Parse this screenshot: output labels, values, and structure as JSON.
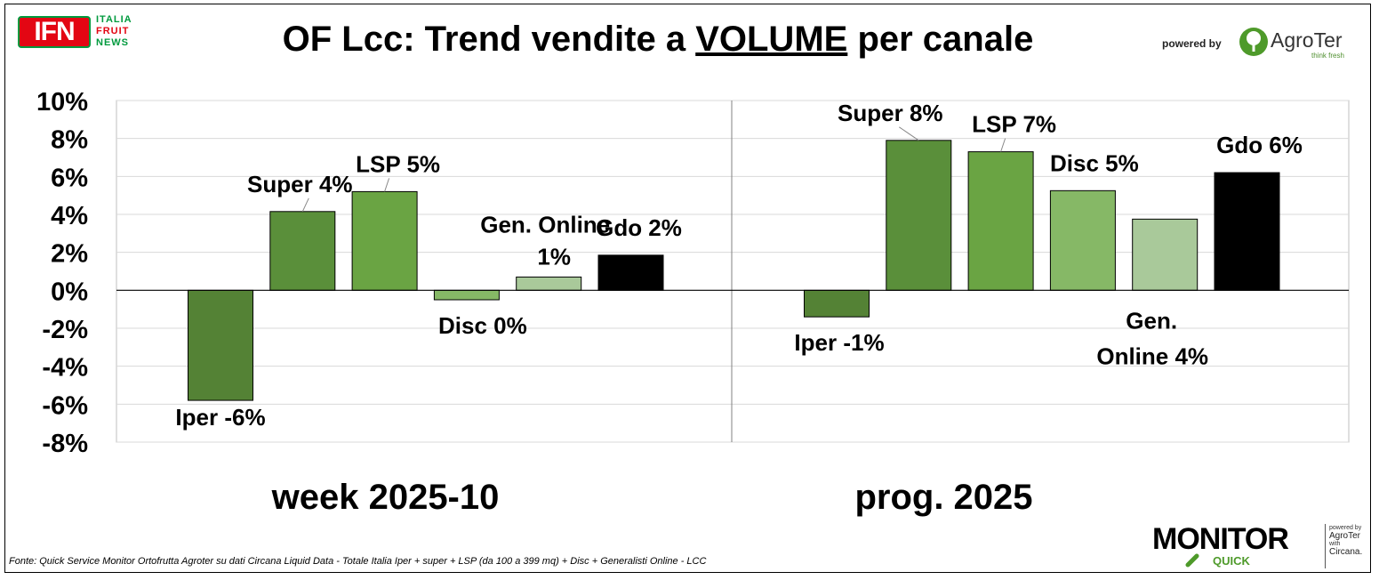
{
  "header": {
    "title_part1": "OF Lcc: Trend vendite a ",
    "title_underlined": "VOLUME",
    "title_part2": " per canale",
    "ifn_logo": {
      "mark": "IFN",
      "line1": "ITALIA",
      "line2": "FRUIT",
      "line3": "NEWS"
    },
    "powered_by": "powered by",
    "agroter_logo": {
      "name": "AgroTer",
      "tagline": "think fresh"
    }
  },
  "footer": {
    "source": "Fonte: Quick Service Monitor Ortofrutta Agroter su dati Circana Liquid Data - Totale Italia Iper + super + LSP (da 100 a 399 mq) + Disc + Generalisti Online - LCC",
    "monitor_logo": {
      "word": "MONITOR",
      "sub": "QUICK"
    },
    "mini_credit": {
      "line1": "powered by",
      "line2": "AgroTer",
      "line3": "with",
      "line4": "Circana."
    }
  },
  "colors": {
    "iper": "#548235",
    "super": "#5a8f3a",
    "lsp": "#6aa443",
    "disc": "#86b866",
    "gen_online": "#a9c99a",
    "gdo": "#000000",
    "grid": "#d9d9d9",
    "axis": "#000000"
  },
  "chart_data": {
    "type": "bar",
    "y_tick_labels": [
      "10%",
      "8%",
      "6%",
      "4%",
      "2%",
      "0%",
      "-2%",
      "-4%",
      "-6%",
      "-8%"
    ],
    "ylim": [
      -8,
      10
    ],
    "grid": true,
    "groups": [
      {
        "label": "week 2025-10",
        "bars": [
          {
            "category": "Iper",
            "value": -5.8,
            "label": "Iper -6%",
            "color_key": "iper"
          },
          {
            "category": "Super",
            "value": 4.15,
            "label": "Super 4%",
            "color_key": "super"
          },
          {
            "category": "LSP",
            "value": 5.2,
            "label": "LSP 5%",
            "color_key": "lsp"
          },
          {
            "category": "Disc",
            "value": -0.5,
            "label": "Disc 0%",
            "color_key": "disc"
          },
          {
            "category": "Gen. Online",
            "value": 0.7,
            "label": "Gen. Online",
            "label2": "1%",
            "color_key": "gen_online"
          },
          {
            "category": "Gdo",
            "value": 1.85,
            "label": "Gdo 2%",
            "color_key": "gdo"
          }
        ]
      },
      {
        "label": "prog. 2025",
        "bars": [
          {
            "category": "Iper",
            "value": -1.4,
            "label": "Iper -1%",
            "color_key": "iper"
          },
          {
            "category": "Super",
            "value": 7.9,
            "label": "Super 8%",
            "color_key": "super"
          },
          {
            "category": "LSP",
            "value": 7.3,
            "label": "LSP 7%",
            "color_key": "lsp"
          },
          {
            "category": "Disc",
            "value": 5.25,
            "label": "Disc 5%",
            "color_key": "disc"
          },
          {
            "category": "Gen. Online",
            "value": 3.75,
            "label": "Gen.",
            "label2": "Online 4%",
            "color_key": "gen_online"
          },
          {
            "category": "Gdo",
            "value": 6.2,
            "label": "Gdo 6%",
            "color_key": "gdo"
          }
        ]
      }
    ]
  }
}
